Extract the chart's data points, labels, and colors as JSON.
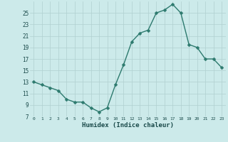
{
  "x": [
    0,
    1,
    2,
    3,
    4,
    5,
    6,
    7,
    8,
    9,
    10,
    11,
    12,
    13,
    14,
    15,
    16,
    17,
    18,
    19,
    20,
    21,
    22,
    23
  ],
  "y": [
    13.0,
    12.5,
    12.0,
    11.5,
    10.0,
    9.5,
    9.5,
    8.5,
    7.8,
    8.5,
    12.5,
    16.0,
    20.0,
    21.5,
    22.0,
    25.0,
    25.5,
    26.5,
    25.0,
    19.5,
    19.0,
    17.0,
    17.0,
    15.5
  ],
  "xlabel": "Humidex (Indice chaleur)",
  "line_color": "#2d7a6e",
  "marker_color": "#2d7a6e",
  "bg_color": "#cceaea",
  "grid_color": "#b0d0d0",
  "tick_label_color": "#1a4a4a",
  "xlabel_color": "#1a4a4a",
  "ylim": [
    7,
    27
  ],
  "xlim": [
    -0.5,
    23.5
  ],
  "yticks": [
    7,
    9,
    11,
    13,
    15,
    17,
    19,
    21,
    23,
    25
  ],
  "xticks": [
    0,
    1,
    2,
    3,
    4,
    5,
    6,
    7,
    8,
    9,
    10,
    11,
    12,
    13,
    14,
    15,
    16,
    17,
    18,
    19,
    20,
    21,
    22,
    23
  ],
  "xtick_labels": [
    "0",
    "1",
    "2",
    "3",
    "4",
    "5",
    "6",
    "7",
    "8",
    "9",
    "10",
    "11",
    "12",
    "13",
    "14",
    "15",
    "16",
    "17",
    "18",
    "19",
    "20",
    "21",
    "22",
    "23"
  ],
  "linewidth": 1.0,
  "markersize": 2.5
}
